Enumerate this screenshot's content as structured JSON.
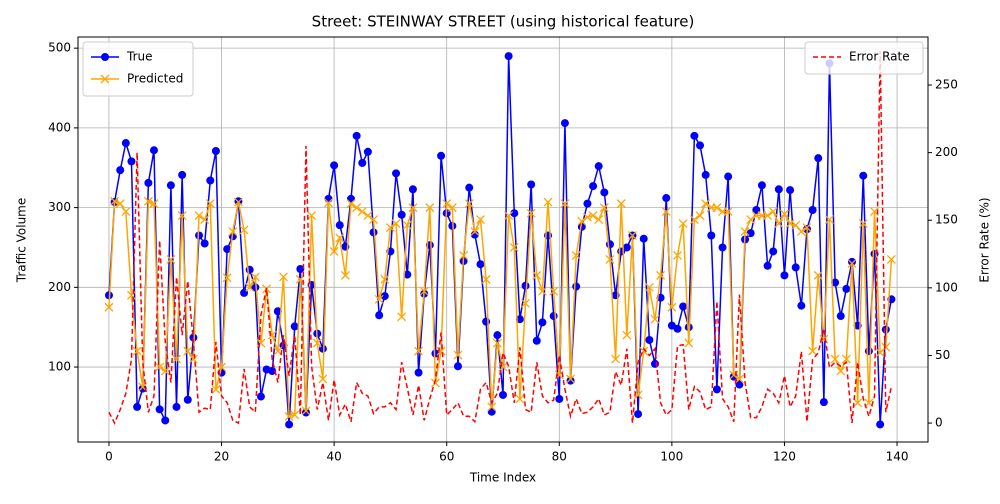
{
  "chart_data": {
    "type": "line",
    "title": "Street: STEINWAY STREET (using historical feature)",
    "xlabel": "Time Index",
    "ylabel": "Traffic Volume",
    "y2label": "Error Rate (%)",
    "x": [
      0,
      1,
      2,
      3,
      4,
      5,
      6,
      7,
      8,
      9,
      10,
      11,
      12,
      13,
      14,
      15,
      16,
      17,
      18,
      19,
      20,
      21,
      22,
      23,
      24,
      25,
      26,
      27,
      28,
      29,
      30,
      31,
      32,
      33,
      34,
      35,
      36,
      37,
      38,
      39,
      40,
      41,
      42,
      43,
      44,
      45,
      46,
      47,
      48,
      49,
      50,
      51,
      52,
      53,
      54,
      55,
      56,
      57,
      58,
      59,
      60,
      61,
      62,
      63,
      64,
      65,
      66,
      67,
      68,
      69,
      70,
      71,
      72,
      73,
      74,
      75,
      76,
      77,
      78,
      79,
      80,
      81,
      82,
      83,
      84,
      85,
      86,
      87,
      88,
      89,
      90,
      91,
      92,
      93,
      94,
      95,
      96,
      97,
      98,
      99,
      100,
      101,
      102,
      103,
      104,
      105,
      106,
      107,
      108,
      109,
      110,
      111,
      112,
      113,
      114,
      115,
      116,
      117,
      118,
      119,
      120,
      121,
      122,
      123,
      124,
      125,
      126,
      127,
      128,
      129,
      130,
      131,
      132,
      133,
      134,
      135,
      136,
      137,
      138,
      139
    ],
    "series": [
      {
        "name": "True",
        "color": "#0000ff",
        "marker": "circle",
        "linestyle": "solid",
        "values": [
          190,
          307,
          347,
          381,
          358,
          50,
          73,
          331,
          372,
          47,
          33,
          328,
          50,
          341,
          59,
          137,
          265,
          255,
          334,
          371,
          93,
          248,
          264,
          308,
          193,
          222,
          200,
          63,
          97,
          95,
          170,
          127,
          28,
          151,
          223,
          43,
          203,
          142,
          123,
          311,
          353,
          278,
          251,
          311,
          390,
          356,
          370,
          269,
          165,
          189,
          245,
          343,
          291,
          216,
          323,
          93,
          192,
          253,
          117,
          365,
          293,
          277,
          101,
          233,
          325,
          266,
          229,
          157,
          44,
          140,
          65,
          490,
          293,
          160,
          202,
          329,
          133,
          156,
          265,
          164,
          60,
          406,
          83,
          201,
          276,
          305,
          327,
          352,
          319,
          254,
          190,
          245,
          250,
          265,
          41,
          261,
          134,
          104,
          187,
          312,
          152,
          148,
          176,
          150,
          390,
          378,
          341,
          265,
          72,
          250,
          339,
          88,
          78,
          260,
          268,
          297,
          328,
          227,
          245,
          323,
          215,
          322,
          225,
          177,
          273,
          297,
          362,
          56,
          481,
          206,
          164,
          198,
          232,
          152,
          340,
          120,
          242,
          28,
          147,
          185
        ]
      },
      {
        "name": "Predicted",
        "color": "#ffa500",
        "marker": "x",
        "linestyle": "solid",
        "values": [
          175,
          308,
          305,
          295,
          190,
          120,
          75,
          308,
          305,
          100,
          95,
          235,
          110,
          290,
          120,
          110,
          290,
          285,
          305,
          72,
          100,
          212,
          270,
          307,
          272,
          200,
          213,
          130,
          198,
          140,
          120,
          213,
          38,
          40,
          210,
          45,
          290,
          130,
          85,
          306,
          245,
          262,
          215,
          305,
          300,
          295,
          290,
          285,
          185,
          210,
          275,
          280,
          163,
          278,
          300,
          120,
          195,
          300,
          80,
          120,
          305,
          300,
          115,
          240,
          305,
          270,
          285,
          210,
          50,
          130,
          100,
          290,
          250,
          60,
          180,
          293,
          215,
          195,
          307,
          195,
          90,
          305,
          85,
          240,
          283,
          288,
          290,
          285,
          300,
          235,
          110,
          305,
          140,
          265,
          65,
          120,
          200,
          160,
          215,
          295,
          175,
          240,
          280,
          130,
          285,
          290,
          305,
          300,
          300,
          295,
          295,
          90,
          85,
          270,
          285,
          290,
          290,
          290,
          295,
          280,
          292,
          280,
          278,
          270,
          275,
          120,
          215,
          135,
          285,
          110,
          95,
          110,
          230,
          55,
          280,
          55,
          295,
          118,
          125,
          235
        ]
      },
      {
        "name": "Error Rate",
        "color": "#ff0000",
        "marker": "none",
        "linestyle": "dashed",
        "axis": "y2",
        "values": [
          8,
          0,
          10,
          22,
          47,
          200,
          45,
          8,
          20,
          135,
          60,
          30,
          108,
          65,
          105,
          60,
          8,
          11,
          10,
          60,
          20,
          15,
          2,
          0,
          40,
          12,
          8,
          80,
          100,
          47,
          30,
          65,
          35,
          65,
          6,
          205,
          42,
          10,
          30,
          2,
          32,
          6,
          14,
          1,
          30,
          22,
          20,
          7,
          12,
          12,
          15,
          10,
          45,
          26,
          6,
          28,
          2,
          18,
          32,
          67,
          6,
          10,
          15,
          5,
          5,
          1,
          25,
          30,
          15,
          22,
          52,
          42,
          15,
          56,
          10,
          8,
          45,
          20,
          15,
          17,
          50,
          25,
          5,
          18,
          7,
          8,
          12,
          18,
          6,
          8,
          38,
          28,
          55,
          0,
          45,
          55,
          50,
          55,
          15,
          6,
          10,
          57,
          58,
          10,
          27,
          23,
          10,
          12,
          90,
          18,
          12,
          1,
          95,
          30,
          4,
          4,
          12,
          25,
          22,
          15,
          35,
          12,
          20,
          53,
          1,
          47,
          52,
          70,
          41,
          45,
          42,
          45,
          0,
          45,
          18,
          5,
          20,
          275,
          8,
          27
        ]
      }
    ],
    "xlim": [
      -5.5,
      145.5
    ],
    "ylim": [
      6,
      514
    ],
    "y2lim": [
      -14,
      285.5
    ],
    "xticks": [
      0,
      20,
      40,
      60,
      80,
      100,
      120,
      140
    ],
    "yticks": [
      100,
      200,
      300,
      400,
      500
    ],
    "y2ticks": [
      0,
      50,
      100,
      150,
      200,
      250
    ],
    "grid": true,
    "legend_loc": "upper left",
    "legend2_loc": "upper right"
  }
}
